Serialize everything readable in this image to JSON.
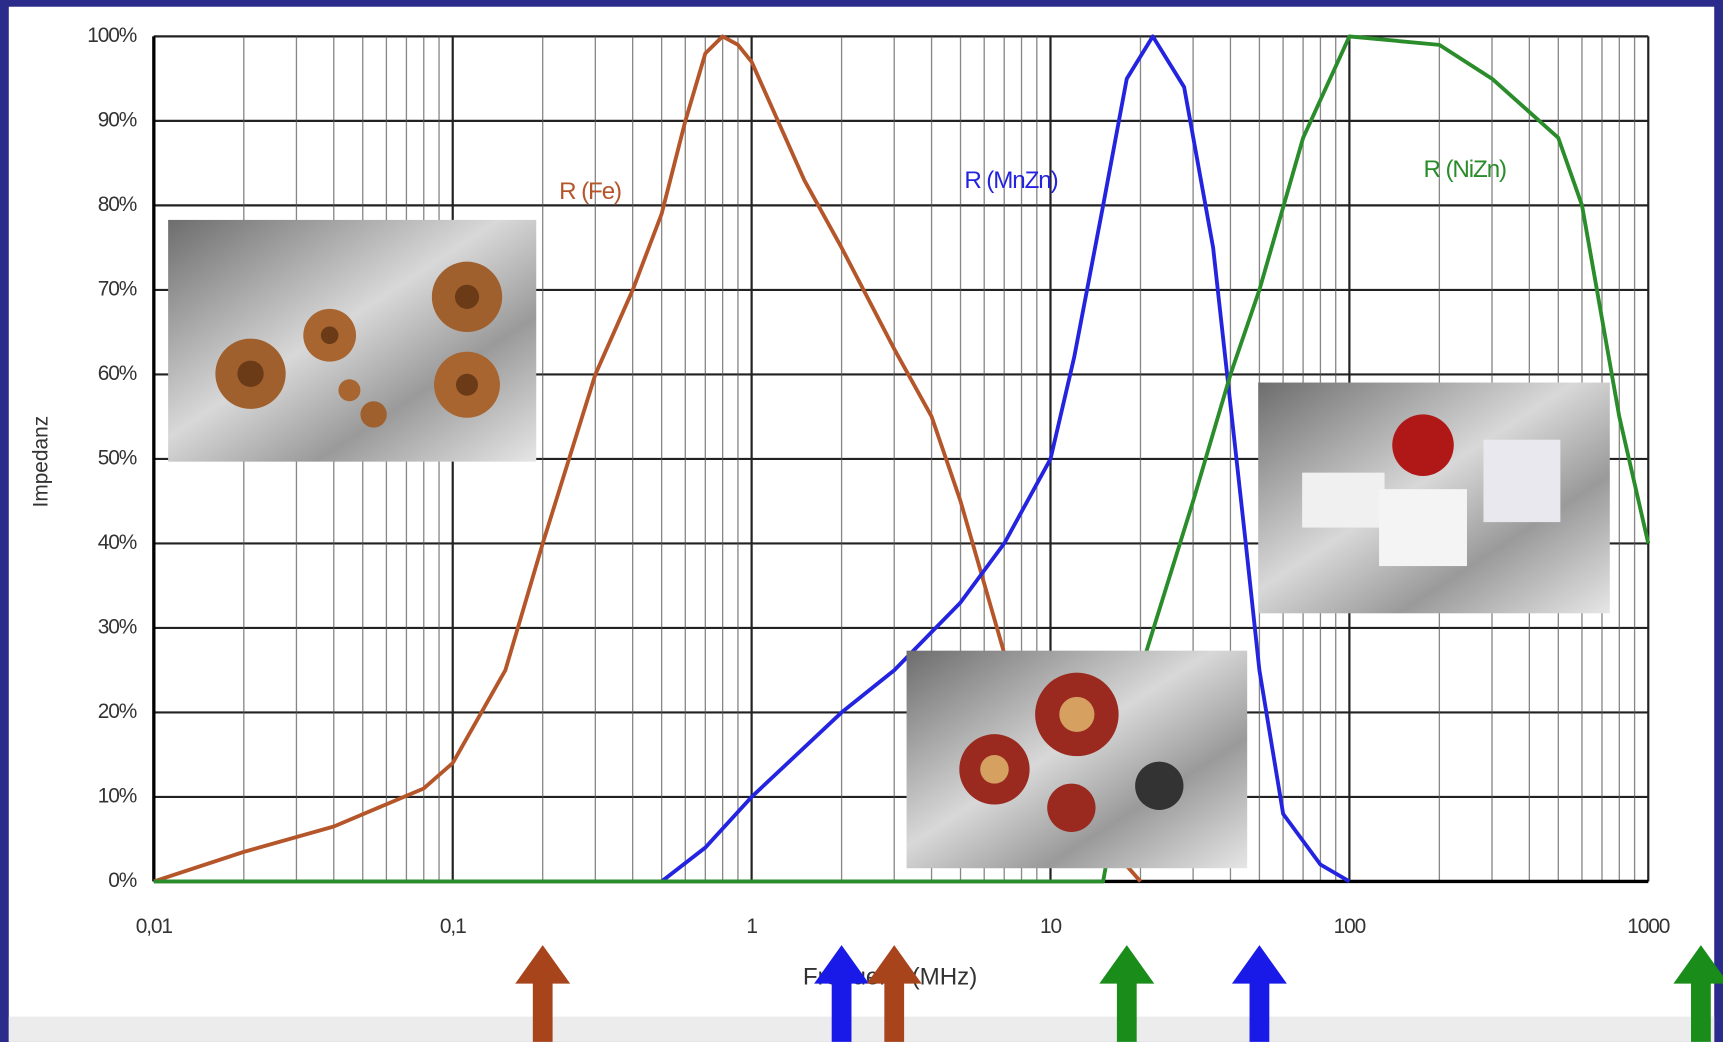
{
  "chart_data": {
    "type": "line",
    "x_label": "Frequenz (MHz)",
    "y_label": "Impedanz",
    "xlog": true,
    "grid": true,
    "xlim": [
      0.01,
      1000
    ],
    "ylim": [
      0,
      100
    ],
    "xticks": [
      {
        "value": 0.01,
        "label": "0,01"
      },
      {
        "value": 0.1,
        "label": "0,1"
      },
      1,
      10,
      100,
      1000
    ],
    "yticks": [
      {
        "value": 0,
        "label": "0%"
      },
      {
        "value": 10,
        "label": "10%"
      },
      {
        "value": 20,
        "label": "20%"
      },
      {
        "value": 30,
        "label": "30%"
      },
      {
        "value": 40,
        "label": "40%"
      },
      {
        "value": 50,
        "label": "50%"
      },
      {
        "value": 60,
        "label": "60%"
      },
      {
        "value": 70,
        "label": "70%"
      },
      {
        "value": 80,
        "label": "80%"
      },
      {
        "value": 90,
        "label": "90%"
      },
      {
        "value": 100,
        "label": "100%"
      }
    ],
    "series": [
      {
        "name": "R (Fe)",
        "color": "#b5562a",
        "x": [
          0.01,
          0.02,
          0.04,
          0.08,
          0.1,
          0.15,
          0.2,
          0.3,
          0.4,
          0.5,
          0.6,
          0.7,
          0.8,
          0.9,
          1,
          1.5,
          2,
          3,
          4,
          5,
          7,
          10,
          15,
          20
        ],
        "values": [
          0,
          3.5,
          6.5,
          11,
          14,
          25,
          40,
          60,
          70,
          79,
          90,
          98,
          100,
          99,
          97,
          83,
          75,
          63,
          55,
          45,
          27,
          15,
          5,
          0
        ]
      },
      {
        "name": "R (MnZn)",
        "color": "#2424e0",
        "x": [
          0.5,
          0.7,
          1,
          2,
          3,
          5,
          7,
          10,
          12,
          15,
          18,
          22,
          28,
          35,
          45,
          50,
          60,
          80,
          100
        ],
        "values": [
          0,
          4,
          10,
          20,
          25,
          33,
          40,
          50,
          62,
          80,
          95,
          100,
          94,
          75,
          40,
          25,
          8,
          2,
          0
        ]
      },
      {
        "name": "R (NiZn)",
        "color": "#2a8c2a",
        "x": [
          0.01,
          15,
          20,
          30,
          40,
          50,
          70,
          100,
          200,
          300,
          500,
          600,
          800,
          1000
        ],
        "values": [
          0,
          0,
          25,
          45,
          60,
          70,
          88,
          100,
          99,
          95,
          88,
          80,
          55,
          40
        ]
      }
    ],
    "arrows": [
      {
        "x": 0.2,
        "color": "#a8441c"
      },
      {
        "x": 2,
        "color": "#1a1ae8"
      },
      {
        "x": 3,
        "color": "#a8441c"
      },
      {
        "x": 18,
        "color": "#1a8c1a"
      },
      {
        "x": 50,
        "color": "#1a1ae8"
      },
      {
        "x": 1500,
        "color": "#1a8c1a"
      }
    ]
  }
}
